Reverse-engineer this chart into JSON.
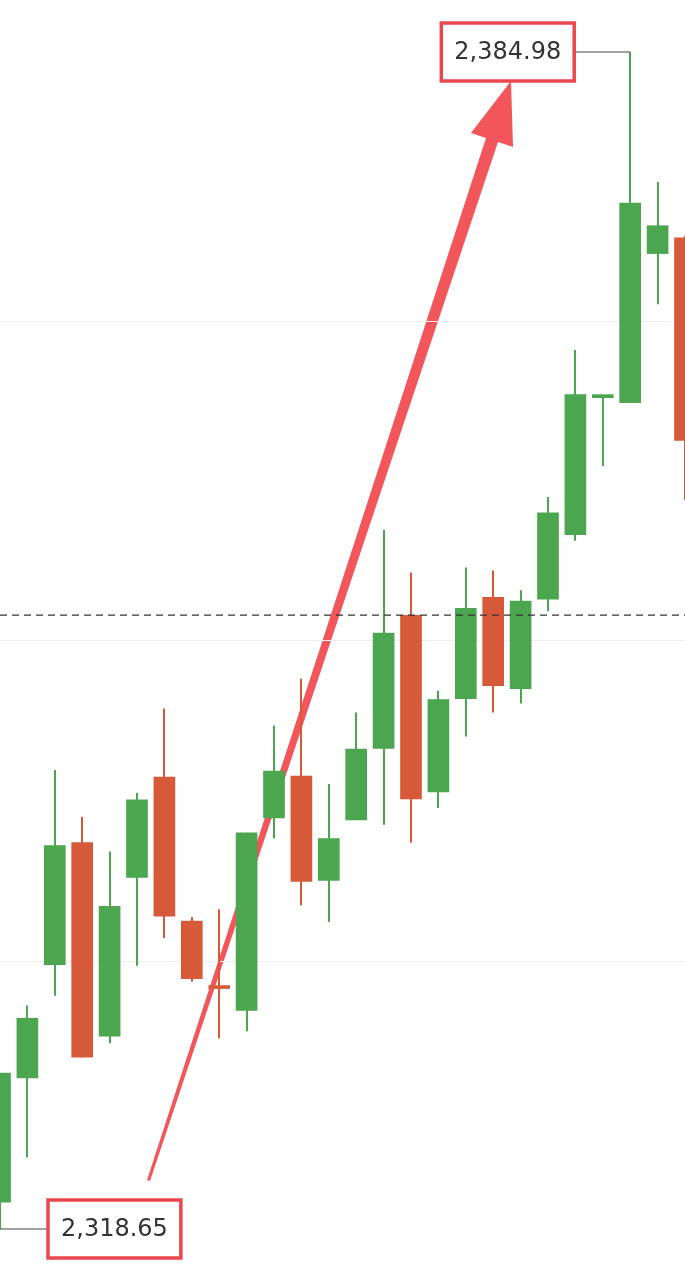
{
  "chart_data": {
    "type": "candlestick",
    "categories": [
      null,
      null,
      null,
      null,
      null,
      null,
      null,
      null,
      null,
      null,
      null,
      null,
      null,
      null,
      null,
      null,
      null,
      null,
      null,
      null,
      null,
      null,
      null,
      null,
      null,
      null
    ],
    "ohlc": [
      [
        2320.16,
        2327.44,
        2318.65,
        2327.44
      ],
      [
        2327.16,
        2331.24,
        2322.68,
        2330.52
      ],
      [
        2333.54,
        2344.51,
        2331.8,
        2340.26
      ],
      [
        2340.42,
        2341.88,
        2328.33,
        2328.33
      ],
      [
        2329.51,
        2339.92,
        2329.12,
        2336.84
      ],
      [
        2338.47,
        2343.22,
        2333.48,
        2342.83
      ],
      [
        2344.12,
        2347.98,
        2335.05,
        2336.28
      ],
      [
        2336.0,
        2336.23,
        2332.59,
        2332.76
      ],
      [
        2332.2,
        2336.67,
        2329.4,
        2332.2
      ],
      [
        2330.97,
        2340.98,
        2329.79,
        2340.98
      ],
      [
        2341.82,
        2347.03,
        2340.65,
        2344.45
      ],
      [
        2344.18,
        2349.66,
        2336.9,
        2338.24
      ],
      [
        2338.3,
        2343.73,
        2335.95,
        2340.65
      ],
      [
        2341.71,
        2347.76,
        2341.71,
        2345.69
      ],
      [
        2345.74,
        2358.06,
        2341.43,
        2352.24
      ],
      [
        2353.24,
        2355.65,
        2340.42,
        2342.89
      ],
      [
        2343.28,
        2348.99,
        2342.38,
        2348.49
      ],
      [
        2348.54,
        2355.93,
        2346.41,
        2353.63
      ],
      [
        2354.25,
        2355.76,
        2347.76,
        2349.27
      ],
      [
        2349.1,
        2354.64,
        2348.26,
        2354.03
      ],
      [
        2354.14,
        2359.9,
        2353.47,
        2359.01
      ],
      [
        2357.78,
        2368.19,
        2357.44,
        2365.67
      ],
      [
        2365.5,
        2365.61,
        2361.64,
        2365.61
      ],
      [
        2365.22,
        2384.98,
        2365.22,
        2376.47
      ],
      [
        2373.62,
        2377.65,
        2370.76,
        2375.19
      ],
      [
        2374.51,
        2374.63,
        2359.74,
        2363.09
      ]
    ],
    "colors": [
      "#4ba64f",
      "#4ba64f",
      "#4ba64f",
      "#d65a3a",
      "#4ba64f",
      "#4ba64f",
      "#d65a3a",
      "#d65a3a",
      "#d65a3a",
      "#4ba64f",
      "#4ba64f",
      "#d65a3a",
      "#4ba64f",
      "#4ba64f",
      "#4ba64f",
      "#d65a3a",
      "#4ba64f",
      "#4ba64f",
      "#d65a3a",
      "#4ba64f",
      "#4ba64f",
      "#4ba64f",
      "#4ba64f",
      "#4ba64f",
      "#4ba64f",
      "#d65a3a"
    ],
    "yticks": [
      {
        "value": 2333.71,
        "label": null
      },
      {
        "value": 2351.79,
        "label": null
      },
      {
        "value": 2369.81,
        "label": null
      }
    ],
    "grid": "y",
    "tick_labels": false,
    "legend": false,
    "ref_lines": [
      {
        "axis": "y",
        "value": 2353.24,
        "color": "#333333",
        "line_style": "dashed"
      }
    ],
    "annotations": [
      "2,384.98",
      "2,318.65"
    ]
  }
}
